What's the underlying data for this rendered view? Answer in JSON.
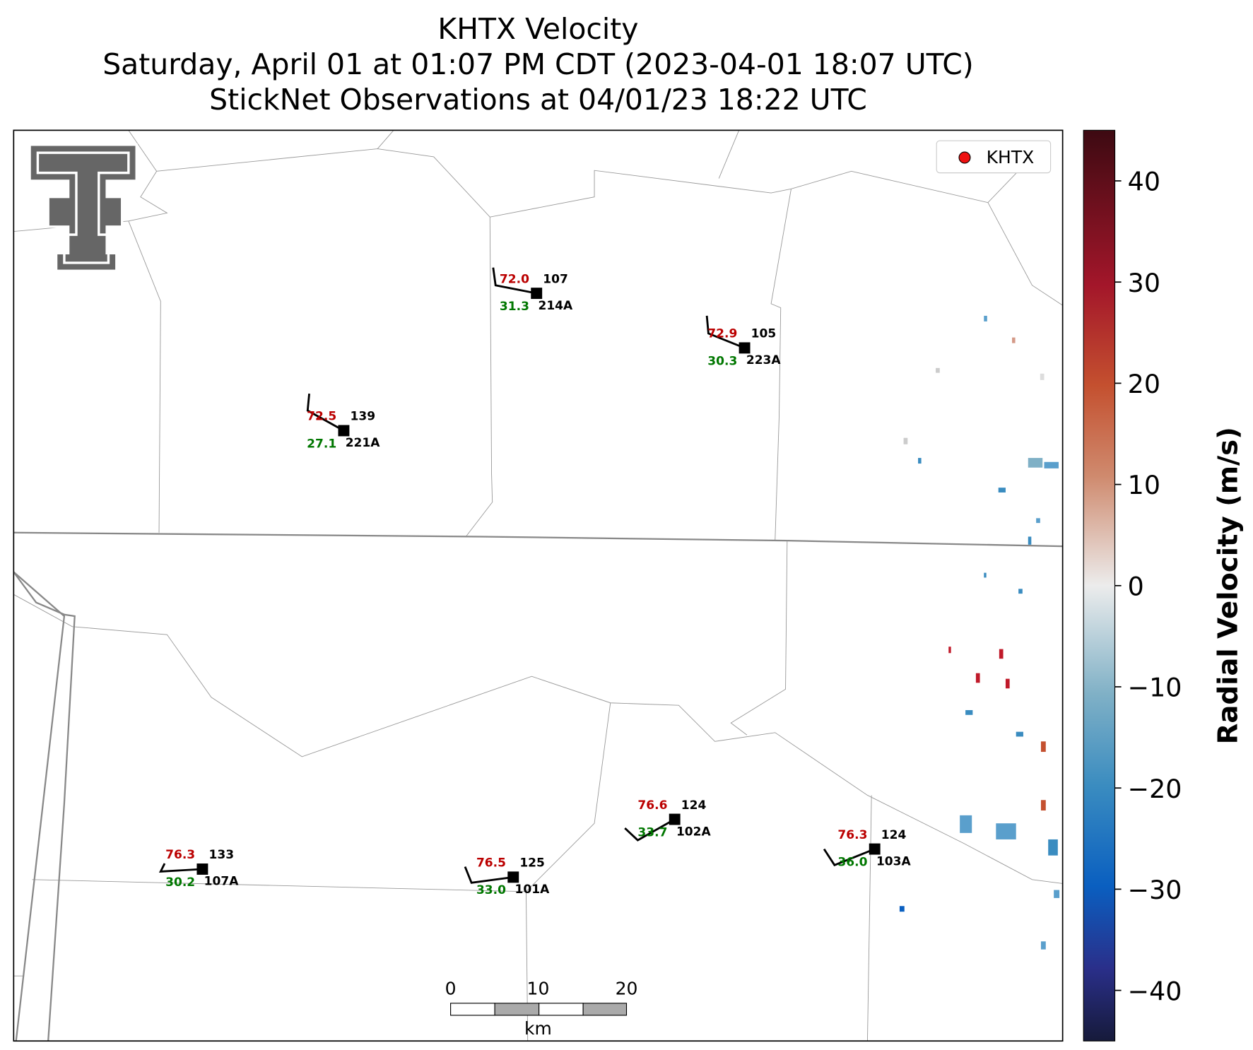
{
  "header": {
    "title": "KHTX Velocity",
    "subtitle": "Saturday, April 01 at 01:07 PM CDT (2023-04-01 18:07 UTC)",
    "subtitle2": "StickNet Observations at 04/01/23 18:22 UTC"
  },
  "legend": {
    "label": "KHTX"
  },
  "stations": [
    {
      "temperature": "72.5",
      "dewpoint": "27.1",
      "pressure": "139",
      "id": "221A"
    },
    {
      "temperature": "72.0",
      "dewpoint": "31.3",
      "pressure": "107",
      "id": "214A"
    },
    {
      "temperature": "72.9",
      "dewpoint": "30.3",
      "pressure": "105",
      "id": "223A"
    },
    {
      "temperature": "76.3",
      "dewpoint": "30.2",
      "pressure": "133",
      "id": "107A"
    },
    {
      "temperature": "76.5",
      "dewpoint": "33.0",
      "pressure": "125",
      "id": "101A"
    },
    {
      "temperature": "76.6",
      "dewpoint": "33.7",
      "pressure": "124",
      "id": "102A"
    },
    {
      "temperature": "76.3",
      "dewpoint": "36.0",
      "pressure": "124",
      "id": "103A"
    }
  ],
  "scale_bar": {
    "ticks": [
      "0",
      "10",
      "20"
    ],
    "unit": "km"
  },
  "colorbar": {
    "label": "Radial Velocity (m/s)",
    "lim": [
      -45,
      45
    ],
    "ticks": [
      40,
      30,
      20,
      10,
      0,
      {
        "value": -10,
        "label": "−10"
      },
      {
        "value": -20,
        "label": "−20"
      },
      {
        "value": -30,
        "label": "−30"
      },
      {
        "value": -40,
        "label": "−40"
      }
    ]
  }
}
